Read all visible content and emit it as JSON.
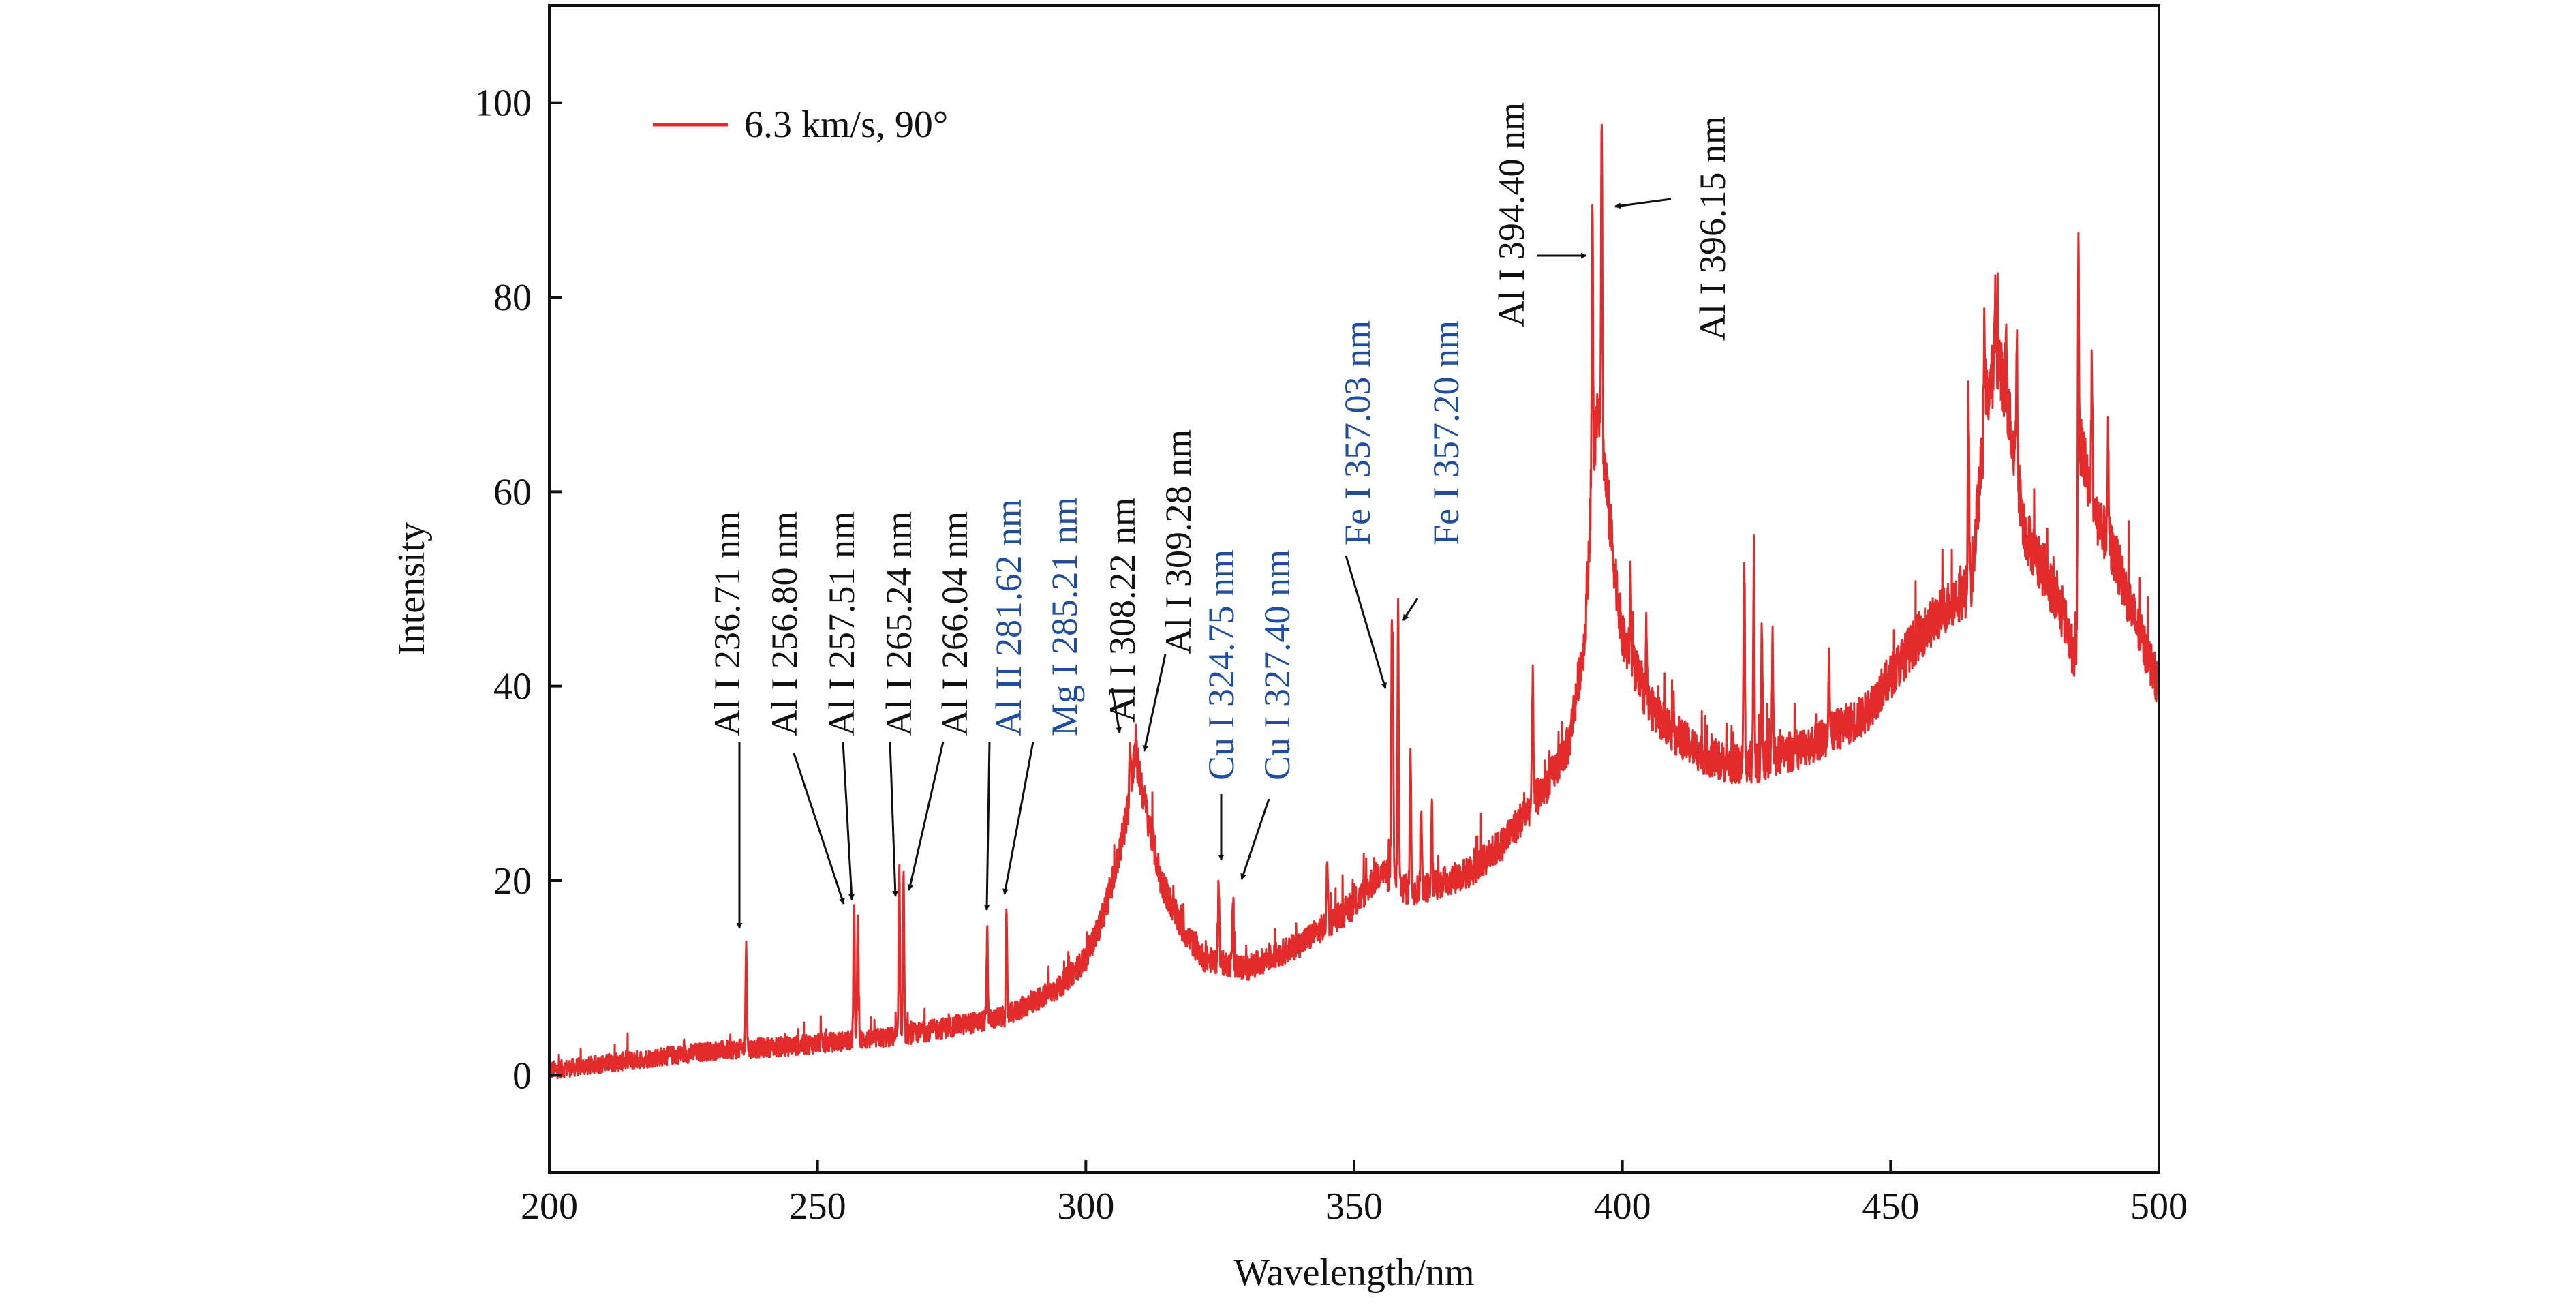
{
  "chart_data": {
    "type": "line",
    "title": "",
    "xlabel": "Wavelength/nm",
    "ylabel": "Intensity",
    "xlim": [
      200,
      500
    ],
    "ylim": [
      -10,
      110
    ],
    "xticks": [
      200,
      250,
      300,
      350,
      400,
      450,
      500
    ],
    "yticks": [
      0,
      20,
      40,
      60,
      80,
      100
    ],
    "grid": false,
    "legend_position": "top-left",
    "colors": {
      "series": "#e32b2b",
      "annotation_black": "#111111",
      "annotation_blue": "#1f4e9e"
    },
    "series": [
      {
        "name": "6.3 km/s, 90°",
        "color": "#e32b2b",
        "baseline": [
          [
            200,
            0.5
          ],
          [
            215,
            1.5
          ],
          [
            230,
            2.5
          ],
          [
            245,
            3.0
          ],
          [
            255,
            3.5
          ],
          [
            265,
            4.0
          ],
          [
            275,
            5.0
          ],
          [
            285,
            6.0
          ],
          [
            295,
            9.0
          ],
          [
            300,
            12.0
          ],
          [
            303,
            16.0
          ],
          [
            306,
            22.0
          ],
          [
            308,
            28.0
          ],
          [
            309.3,
            33.0
          ],
          [
            311,
            28.0
          ],
          [
            314,
            20.0
          ],
          [
            318,
            15.0
          ],
          [
            322,
            12.0
          ],
          [
            330,
            11.0
          ],
          [
            340,
            13.5
          ],
          [
            350,
            17.5
          ],
          [
            355,
            21.0
          ],
          [
            360,
            19.0
          ],
          [
            365,
            19.5
          ],
          [
            372,
            21.0
          ],
          [
            378,
            24.0
          ],
          [
            382,
            27.0
          ],
          [
            386,
            30.0
          ],
          [
            390,
            34.0
          ],
          [
            393,
            45.0
          ],
          [
            394.4,
            62.0
          ],
          [
            395.5,
            70.0
          ],
          [
            398,
            55.0
          ],
          [
            400,
            45.0
          ],
          [
            405,
            38.0
          ],
          [
            410,
            35.0
          ],
          [
            415,
            33.0
          ],
          [
            420,
            32.0
          ],
          [
            425,
            32.0
          ],
          [
            435,
            34.0
          ],
          [
            445,
            37.0
          ],
          [
            455,
            45.0
          ],
          [
            462,
            49.0
          ],
          [
            465,
            50.0
          ],
          [
            468,
            70.0
          ],
          [
            470,
            74.0
          ],
          [
            472,
            68.0
          ],
          [
            475,
            56.0
          ],
          [
            480,
            50.0
          ],
          [
            483,
            46.0
          ],
          [
            484.5,
            42.0
          ],
          [
            485.5,
            65.0
          ],
          [
            488,
            58.0
          ],
          [
            492,
            53.0
          ],
          [
            496,
            46.0
          ],
          [
            500,
            40.0
          ]
        ],
        "peaks": [
          [
            236.71,
            14
          ],
          [
            256.8,
            17
          ],
          [
            257.51,
            17
          ],
          [
            265.24,
            21
          ],
          [
            266.04,
            21
          ],
          [
            281.62,
            15
          ],
          [
            285.21,
            16
          ],
          [
            308.22,
            34
          ],
          [
            309.28,
            34
          ],
          [
            324.75,
            20
          ],
          [
            327.4,
            18
          ],
          [
            345.0,
            23
          ],
          [
            357.03,
            46
          ],
          [
            357.2,
            44
          ],
          [
            358.2,
            48
          ],
          [
            360.5,
            34
          ],
          [
            362.5,
            28
          ],
          [
            364.5,
            27
          ],
          [
            383.3,
            42
          ],
          [
            394.4,
            87
          ],
          [
            396.15,
            100
          ],
          [
            401.5,
            51
          ],
          [
            404.5,
            46
          ],
          [
            422.7,
            52
          ],
          [
            424.5,
            51
          ],
          [
            426.0,
            47
          ],
          [
            428.0,
            45
          ],
          [
            438.5,
            44
          ],
          [
            464.5,
            71
          ],
          [
            467.5,
            77
          ],
          [
            469.5,
            81
          ],
          [
            471.5,
            76
          ],
          [
            473.5,
            76
          ],
          [
            485.0,
            85
          ],
          [
            487.5,
            74
          ],
          [
            490.5,
            65
          ]
        ]
      }
    ],
    "annotations": [
      {
        "text": "Al I 236.71 nm",
        "color": "black",
        "wavelength": 236.71
      },
      {
        "text": "Al I 256.80 nm",
        "color": "black",
        "wavelength": 256.8
      },
      {
        "text": "Al I 257.51 nm",
        "color": "black",
        "wavelength": 257.51
      },
      {
        "text": "Al I 265.24 nm",
        "color": "black",
        "wavelength": 265.24
      },
      {
        "text": "Al I 266.04 nm",
        "color": "black",
        "wavelength": 266.04
      },
      {
        "text": "Al II 281.62 nm",
        "color": "blue",
        "wavelength": 281.62
      },
      {
        "text": "Mg I 285.21 nm",
        "color": "blue",
        "wavelength": 285.21
      },
      {
        "text": "Al I 308.22 nm",
        "color": "black",
        "wavelength": 308.22
      },
      {
        "text": "Al I 309.28 nm",
        "color": "black",
        "wavelength": 309.28
      },
      {
        "text": "Cu I 324.75 nm",
        "color": "blue",
        "wavelength": 324.75
      },
      {
        "text": "Cu I 327.40 nm",
        "color": "blue",
        "wavelength": 327.4
      },
      {
        "text": "Fe I 357.03 nm",
        "color": "blue",
        "wavelength": 357.03
      },
      {
        "text": "Fe I 357.20 nm",
        "color": "blue",
        "wavelength": 357.2
      },
      {
        "text": "Al I 394.40 nm",
        "color": "black",
        "wavelength": 394.4
      },
      {
        "text": "Al I 396.15 nm",
        "color": "black",
        "wavelength": 396.15
      }
    ]
  }
}
